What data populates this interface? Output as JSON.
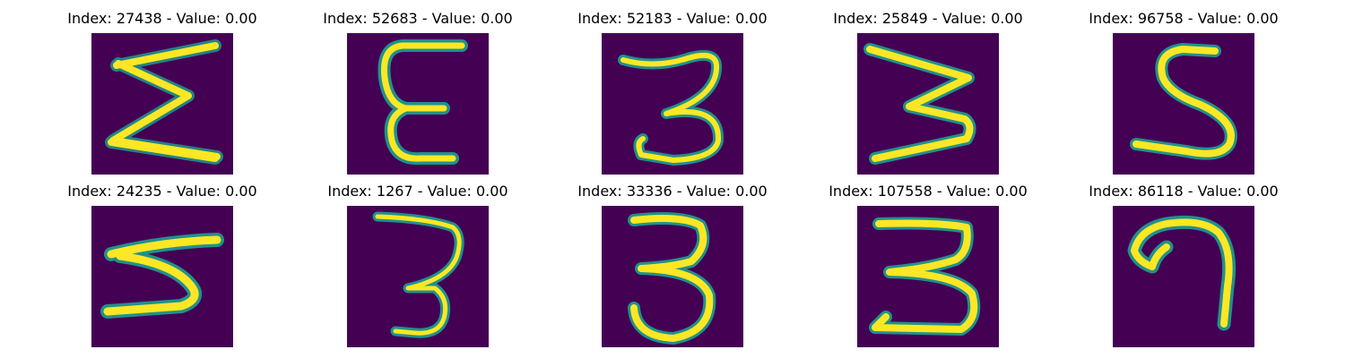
{
  "colors": {
    "background": "#440154",
    "stroke_core": "#fde725",
    "stroke_edge": "#21918c"
  },
  "panels": [
    {
      "title": "Index: 27438 - Value: 0.00",
      "digit": "sigma-like"
    },
    {
      "title": "Index: 52683 - Value: 0.00",
      "digit": "epsilon"
    },
    {
      "title": "Index: 52183 - Value: 0.00",
      "digit": "3"
    },
    {
      "title": "Index: 25849 - Value: 0.00",
      "digit": "zigzag"
    },
    {
      "title": "Index: 96758 - Value: 0.00",
      "digit": "5"
    },
    {
      "title": "Index: 24235 - Value: 0.00",
      "digit": "sigma-like-small"
    },
    {
      "title": "Index: 1267 - Value: 0.00",
      "digit": "3-thin"
    },
    {
      "title": "Index: 33336 - Value: 0.00",
      "digit": "3"
    },
    {
      "title": "Index: 107558 - Value: 0.00",
      "digit": "3-wide"
    },
    {
      "title": "Index: 86118 - Value: 0.00",
      "digit": "7-curl"
    }
  ]
}
